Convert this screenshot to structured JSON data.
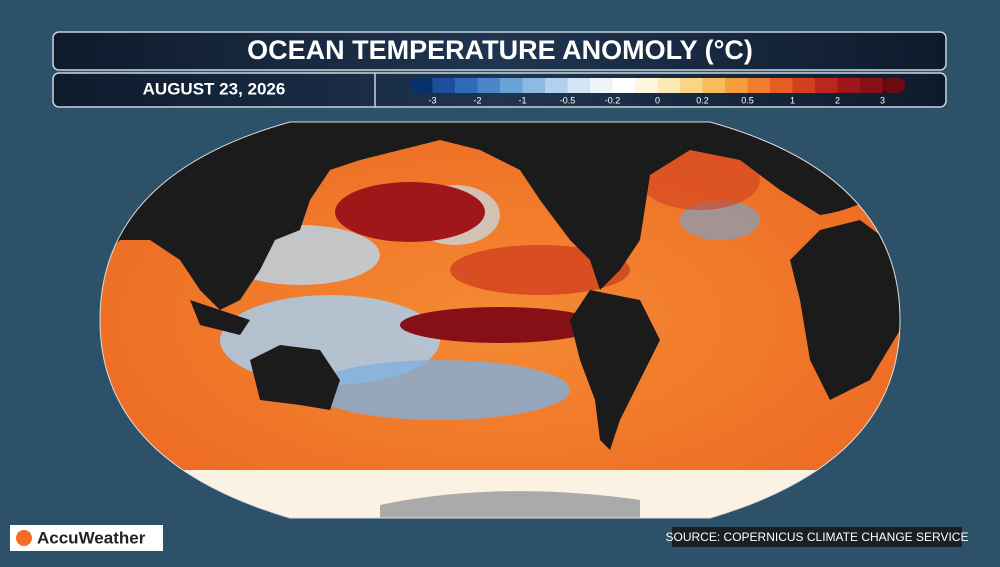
{
  "header": {
    "title": "OCEAN TEMPERATURE ANOMOLY (°C)",
    "date": "AUGUST 23, 2026"
  },
  "legend": {
    "ticks": [
      -3,
      -2,
      -1,
      -0.5,
      -0.2,
      0,
      0.2,
      0.5,
      1,
      2,
      3
    ],
    "colors": [
      "#08306b",
      "#1c4f9c",
      "#2f6bb8",
      "#4a86c8",
      "#6aa1d6",
      "#8dbae3",
      "#b0d1ec",
      "#d3e5f3",
      "#eef4f8",
      "#ffffff",
      "#fff6df",
      "#fde9b5",
      "#fbd585",
      "#f8bc5c",
      "#f59e3d",
      "#ef7d2c",
      "#e45e24",
      "#d1401f",
      "#b8281c",
      "#a0171a",
      "#861016",
      "#6b0a12"
    ]
  },
  "branding": {
    "logo": "AccuWeather",
    "source": "SOURCE: COPERNICUS CLIMATE CHANGE SERVICE"
  }
}
